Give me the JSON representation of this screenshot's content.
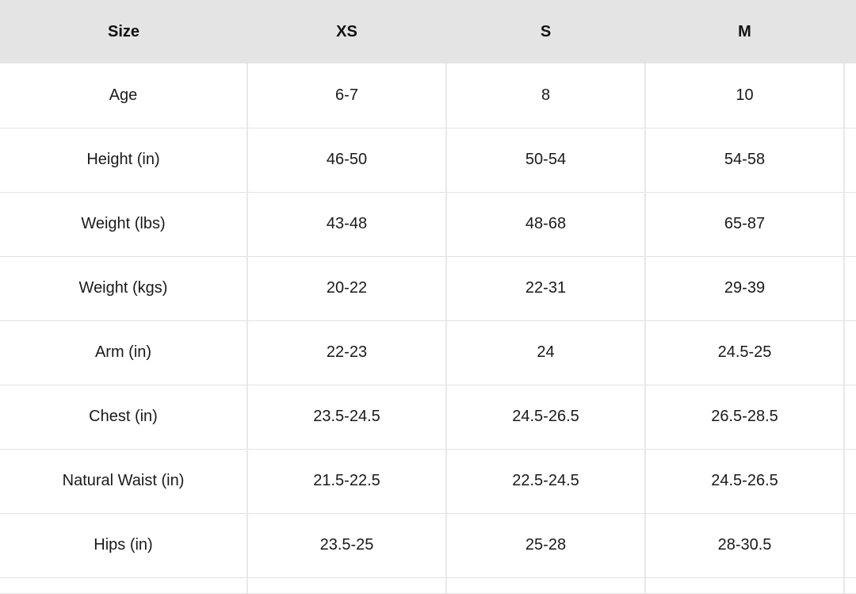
{
  "table": {
    "headers": [
      "Size",
      "XS",
      "S",
      "M",
      ""
    ],
    "rows": [
      [
        "Age",
        "6-7",
        "8",
        "10",
        ""
      ],
      [
        "Height (in)",
        "46-50",
        "50-54",
        "54-58",
        ""
      ],
      [
        "Weight (lbs)",
        "43-48",
        "48-68",
        "65-87",
        ""
      ],
      [
        "Weight (kgs)",
        "20-22",
        "22-31",
        "29-39",
        ""
      ],
      [
        "Arm (in)",
        "22-23",
        "24",
        "24.5-25",
        ""
      ],
      [
        "Chest (in)",
        "23.5-24.5",
        "24.5-26.5",
        "26.5-28.5",
        ""
      ],
      [
        "Natural Waist (in)",
        "21.5-22.5",
        "22.5-24.5",
        "24.5-26.5",
        ""
      ],
      [
        "Hips (in)",
        "23.5-25",
        "25-28",
        "28-30.5",
        ""
      ]
    ]
  },
  "colors": {
    "header_bg": "#e4e4e4",
    "grid": "#e2e2e2"
  }
}
